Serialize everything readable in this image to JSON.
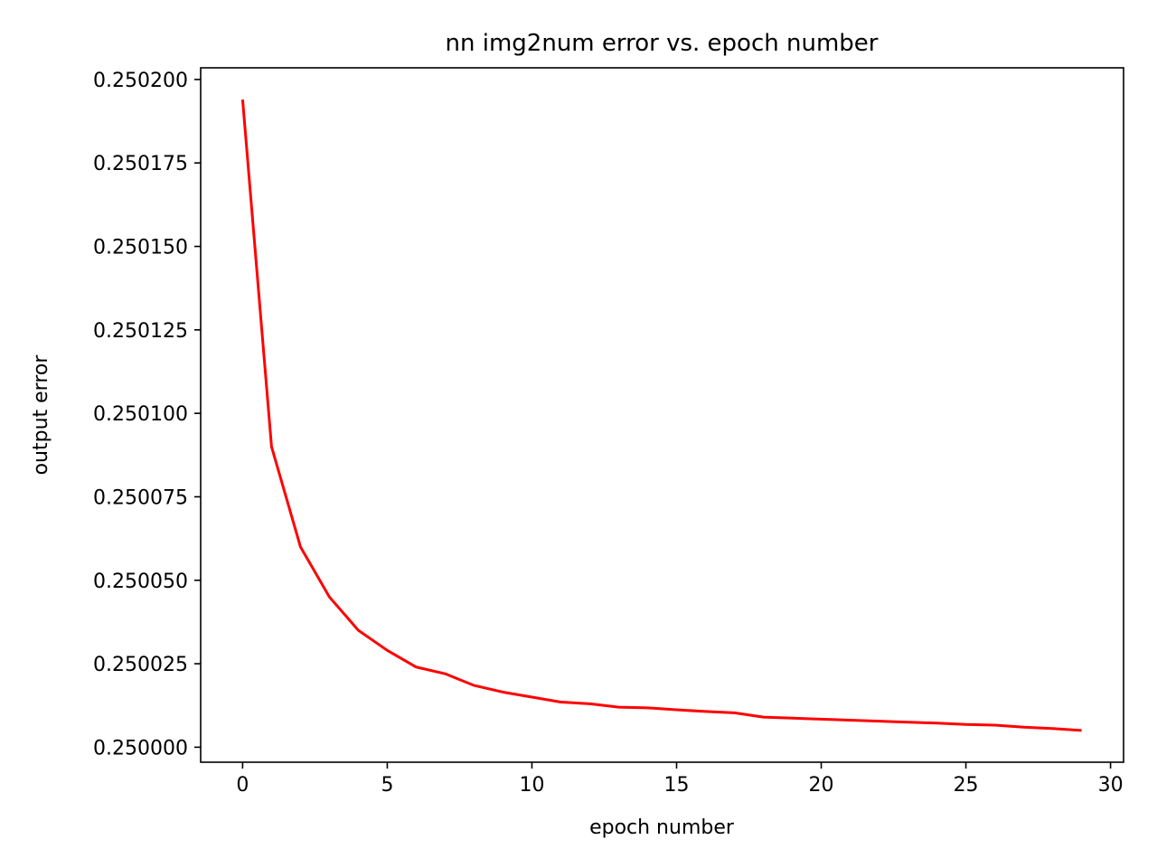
{
  "chart_data": {
    "type": "line",
    "title": "nn img2num error vs. epoch number",
    "xlabel": "epoch number",
    "ylabel": "output error",
    "xlim": [
      -1.45,
      30.45
    ],
    "ylim": [
      0.2499955,
      0.2502035
    ],
    "xticks": [
      0,
      5,
      10,
      15,
      20,
      25,
      30
    ],
    "xtick_labels": [
      "0",
      "5",
      "10",
      "15",
      "20",
      "25",
      "30"
    ],
    "yticks": [
      0.25,
      0.250025,
      0.25005,
      0.250075,
      0.2501,
      0.250125,
      0.25015,
      0.250175,
      0.2502
    ],
    "ytick_labels": [
      "0.250000",
      "0.250025",
      "0.250050",
      "0.250075",
      "0.250100",
      "0.250125",
      "0.250150",
      "0.250175",
      "0.250200"
    ],
    "grid": false,
    "series": [
      {
        "color": "#ff0000",
        "x": [
          0,
          1,
          2,
          3,
          4,
          5,
          6,
          7,
          8,
          9,
          10,
          11,
          12,
          13,
          14,
          15,
          16,
          17,
          18,
          19,
          20,
          21,
          22,
          23,
          24,
          25,
          26,
          27,
          28,
          29
        ],
        "y": [
          0.250194,
          0.25009,
          0.25006,
          0.250045,
          0.250035,
          0.250029,
          0.250024,
          0.250022,
          0.2500185,
          0.2500165,
          0.250015,
          0.2500135,
          0.250013,
          0.250012,
          0.2500118,
          0.2500112,
          0.2500107,
          0.2500103,
          0.250009,
          0.2500087,
          0.2500084,
          0.2500081,
          0.2500078,
          0.2500075,
          0.2500072,
          0.2500068,
          0.2500066,
          0.250006,
          0.2500056,
          0.250005
        ]
      }
    ]
  }
}
